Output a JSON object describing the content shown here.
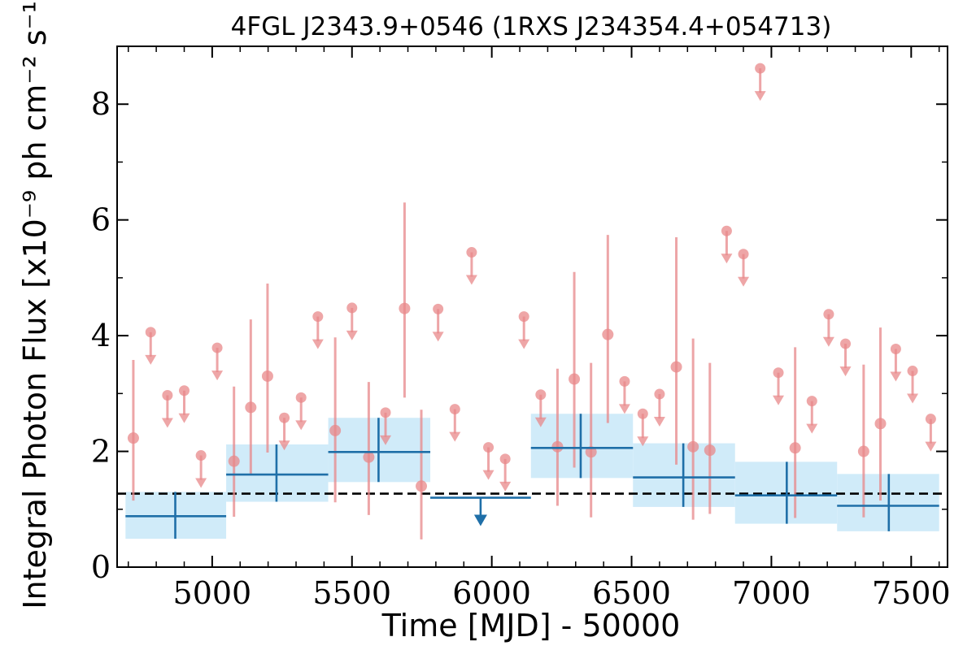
{
  "chart_data": {
    "type": "scatter",
    "title": "4FGL J2343.9+0546 (1RXS J234354.4+054713)",
    "xlabel": "Time [MJD] - 50000",
    "ylabel": "Integral Photon Flux [x10⁻⁹ ph cm⁻² s⁻¹]",
    "xlim": [
      4660,
      7630
    ],
    "ylim": [
      0,
      9.0
    ],
    "x_ticks": [
      5000,
      5500,
      6000,
      6500,
      7000,
      7500
    ],
    "y_ticks": [
      0,
      2,
      4,
      6,
      8
    ],
    "x_tick_labels": [
      "5000",
      "5500",
      "6000",
      "6500",
      "7000",
      "7500"
    ],
    "y_tick_labels": [
      "0",
      "2",
      "4",
      "6",
      "8"
    ],
    "mean_flux": 1.27,
    "colors": {
      "short_bins": "#e8888a",
      "long_bins": "#1f6fa8",
      "long_bins_band": "#cdeaf9",
      "mean_line": "#000000"
    },
    "series": [
      {
        "name": "",
        "points": [
          {
            "x": 4718,
            "y": 2.23,
            "lo": 1.15,
            "hi": 3.58
          },
          {
            "x": 5078,
            "y": 1.83,
            "lo": 0.87,
            "hi": 3.12
          },
          {
            "x": 5138,
            "y": 2.76,
            "lo": 1.6,
            "hi": 4.28
          },
          {
            "x": 5198,
            "y": 3.3,
            "lo": 1.98,
            "hi": 4.9
          },
          {
            "x": 5440,
            "y": 2.36,
            "lo": 1.12,
            "hi": 3.97
          },
          {
            "x": 5560,
            "y": 1.9,
            "lo": 0.9,
            "hi": 3.2
          },
          {
            "x": 5688,
            "y": 4.47,
            "lo": 2.93,
            "hi": 6.3
          },
          {
            "x": 5748,
            "y": 1.4,
            "lo": 0.48,
            "hi": 2.72
          },
          {
            "x": 6235,
            "y": 2.08,
            "lo": 1.06,
            "hi": 3.43
          },
          {
            "x": 6295,
            "y": 3.25,
            "lo": 1.72,
            "hi": 5.1
          },
          {
            "x": 6355,
            "y": 1.99,
            "lo": 0.86,
            "hi": 3.53
          },
          {
            "x": 6415,
            "y": 4.02,
            "lo": 2.49,
            "hi": 5.74
          },
          {
            "x": 6660,
            "y": 3.46,
            "lo": 1.77,
            "hi": 5.7
          },
          {
            "x": 6720,
            "y": 2.08,
            "lo": 0.82,
            "hi": 3.95
          },
          {
            "x": 6780,
            "y": 2.02,
            "lo": 0.92,
            "hi": 3.53
          },
          {
            "x": 7085,
            "y": 2.06,
            "lo": 0.85,
            "hi": 3.8
          },
          {
            "x": 7330,
            "y": 2.0,
            "lo": 0.86,
            "hi": 3.5
          },
          {
            "x": 7390,
            "y": 2.48,
            "lo": 1.15,
            "hi": 4.14
          }
        ],
        "upper_limits": [
          {
            "x": 4780,
            "y": 4.06
          },
          {
            "x": 4840,
            "y": 2.97
          },
          {
            "x": 4900,
            "y": 3.05
          },
          {
            "x": 4960,
            "y": 1.93
          },
          {
            "x": 5018,
            "y": 3.79
          },
          {
            "x": 5258,
            "y": 2.58
          },
          {
            "x": 5318,
            "y": 2.93
          },
          {
            "x": 5378,
            "y": 4.33
          },
          {
            "x": 5500,
            "y": 4.48
          },
          {
            "x": 5620,
            "y": 2.67
          },
          {
            "x": 5808,
            "y": 4.46
          },
          {
            "x": 5868,
            "y": 2.73
          },
          {
            "x": 5928,
            "y": 5.44
          },
          {
            "x": 5988,
            "y": 2.07
          },
          {
            "x": 6048,
            "y": 1.87
          },
          {
            "x": 6115,
            "y": 4.33
          },
          {
            "x": 6175,
            "y": 2.98
          },
          {
            "x": 6475,
            "y": 3.21
          },
          {
            "x": 6540,
            "y": 2.65
          },
          {
            "x": 6600,
            "y": 2.99
          },
          {
            "x": 6840,
            "y": 5.81
          },
          {
            "x": 6900,
            "y": 5.41
          },
          {
            "x": 6960,
            "y": 8.62
          },
          {
            "x": 7025,
            "y": 3.36
          },
          {
            "x": 7145,
            "y": 2.87
          },
          {
            "x": 7205,
            "y": 4.37
          },
          {
            "x": 7265,
            "y": 3.86
          },
          {
            "x": 7445,
            "y": 3.77
          },
          {
            "x": 7505,
            "y": 3.39
          },
          {
            "x": 7570,
            "y": 2.56
          }
        ]
      },
      {
        "name": "",
        "points": [
          {
            "x": 4868,
            "x0": 4690,
            "x1": 5050,
            "y": 0.88,
            "lo": 0.49,
            "hi": 1.3
          },
          {
            "x": 5230,
            "x0": 5050,
            "x1": 5415,
            "y": 1.6,
            "lo": 1.13,
            "hi": 2.12
          },
          {
            "x": 5595,
            "x0": 5415,
            "x1": 5780,
            "y": 1.99,
            "lo": 1.47,
            "hi": 2.58
          },
          {
            "x": 6318,
            "x0": 6140,
            "x1": 6505,
            "y": 2.06,
            "lo": 1.54,
            "hi": 2.65
          },
          {
            "x": 6685,
            "x0": 6505,
            "x1": 6870,
            "y": 1.55,
            "lo": 1.04,
            "hi": 2.14
          },
          {
            "x": 7055,
            "x0": 6870,
            "x1": 7235,
            "y": 1.24,
            "lo": 0.75,
            "hi": 1.82
          },
          {
            "x": 7420,
            "x0": 7235,
            "x1": 7600,
            "y": 1.06,
            "lo": 0.62,
            "hi": 1.61
          }
        ],
        "upper_limits": [
          {
            "x": 5960,
            "x0": 5780,
            "x1": 6140,
            "y": 1.2
          }
        ]
      }
    ]
  }
}
